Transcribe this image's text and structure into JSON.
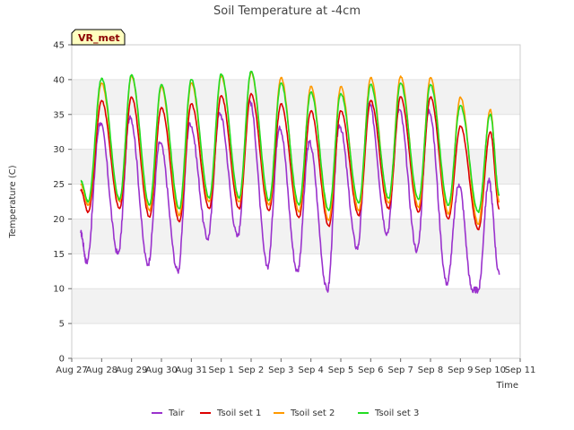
{
  "chart_data": {
    "type": "line",
    "title": "Soil Temperature at -4cm",
    "xlabel": "Time",
    "ylabel": "Temperature (C)",
    "ylim": [
      0,
      45
    ],
    "yticks": [
      0,
      5,
      10,
      15,
      20,
      25,
      30,
      35,
      40,
      45
    ],
    "xlim": [
      0,
      15
    ],
    "xtick_labels": [
      "Aug 27",
      "Aug 28",
      "Aug 29",
      "Aug 30",
      "Aug 31",
      "Sep 1",
      "Sep 2",
      "Sep 3",
      "Sep 4",
      "Sep 5",
      "Sep 6",
      "Sep 7",
      "Sep 8",
      "Sep 9",
      "Sep 10",
      "Sep 11"
    ],
    "x_unit": "days since Aug 27",
    "grid": "horizontal bands",
    "legend_position": "bottom-center",
    "station_badge": "VR_met",
    "series": [
      {
        "name": "Tair",
        "color": "#9a32cd",
        "extrema": [
          [
            0.3,
            18
          ],
          [
            0.5,
            13.8
          ],
          [
            0.95,
            33.8
          ],
          [
            1.55,
            15
          ],
          [
            1.95,
            34.8
          ],
          [
            2.55,
            13.5
          ],
          [
            2.95,
            31
          ],
          [
            3.55,
            12.5
          ],
          [
            3.95,
            33.8
          ],
          [
            4.55,
            17.2
          ],
          [
            4.95,
            35.2
          ],
          [
            5.55,
            17.5
          ],
          [
            5.95,
            37
          ],
          [
            6.55,
            13.2
          ],
          [
            6.95,
            33.3
          ],
          [
            7.55,
            12.5
          ],
          [
            7.95,
            31
          ],
          [
            8.55,
            9.7
          ],
          [
            8.95,
            33.5
          ],
          [
            9.55,
            15.8
          ],
          [
            9.95,
            36.5
          ],
          [
            10.55,
            18
          ],
          [
            10.95,
            35.7
          ],
          [
            11.55,
            15.5
          ],
          [
            11.95,
            35.7
          ],
          [
            12.55,
            10.8
          ],
          [
            12.95,
            25
          ],
          [
            13.4,
            9.8
          ],
          [
            13.6,
            9.8
          ],
          [
            13.95,
            25.5
          ],
          [
            14.3,
            12
          ]
        ]
      },
      {
        "name": "Tsoil set 1",
        "color": "#dd0000",
        "extrema": [
          [
            0.3,
            24.2
          ],
          [
            0.55,
            21
          ],
          [
            1.0,
            37
          ],
          [
            1.6,
            21.5
          ],
          [
            2.0,
            37.5
          ],
          [
            2.6,
            20.3
          ],
          [
            3.0,
            36
          ],
          [
            3.6,
            19.6
          ],
          [
            4.0,
            36.5
          ],
          [
            4.6,
            21.5
          ],
          [
            5.0,
            37.7
          ],
          [
            5.6,
            21.5
          ],
          [
            6.0,
            38
          ],
          [
            6.6,
            21.2
          ],
          [
            7.0,
            36.5
          ],
          [
            7.6,
            20.2
          ],
          [
            8.0,
            35.5
          ],
          [
            8.6,
            19
          ],
          [
            9.0,
            35.5
          ],
          [
            9.6,
            20.5
          ],
          [
            10.0,
            37
          ],
          [
            10.6,
            21.5
          ],
          [
            11.0,
            37.5
          ],
          [
            11.6,
            21
          ],
          [
            12.0,
            37.5
          ],
          [
            12.6,
            20
          ],
          [
            13.0,
            33.3
          ],
          [
            13.6,
            18.5
          ],
          [
            14.0,
            32.5
          ],
          [
            14.3,
            21.5
          ]
        ]
      },
      {
        "name": "Tsoil set 2",
        "color": "#ff9900",
        "extrema": [
          [
            0.3,
            25
          ],
          [
            0.55,
            22
          ],
          [
            1.0,
            39.5
          ],
          [
            1.6,
            22.5
          ],
          [
            2.0,
            40.5
          ],
          [
            2.6,
            21.2
          ],
          [
            3.0,
            39
          ],
          [
            3.6,
            20.5
          ],
          [
            4.0,
            39.5
          ],
          [
            4.6,
            22.5
          ],
          [
            5.0,
            40.5
          ],
          [
            5.6,
            22.5
          ],
          [
            6.0,
            41
          ],
          [
            6.6,
            22
          ],
          [
            7.0,
            40.3
          ],
          [
            7.6,
            21
          ],
          [
            8.0,
            39
          ],
          [
            8.6,
            19.8
          ],
          [
            9.0,
            39
          ],
          [
            9.6,
            21.2
          ],
          [
            10.0,
            40.3
          ],
          [
            10.6,
            22.3
          ],
          [
            11.0,
            40.5
          ],
          [
            11.6,
            21.7
          ],
          [
            12.0,
            40.3
          ],
          [
            12.6,
            20.7
          ],
          [
            13.0,
            37.5
          ],
          [
            13.6,
            19.3
          ],
          [
            14.0,
            35.7
          ],
          [
            14.3,
            22.5
          ]
        ]
      },
      {
        "name": "Tsoil set 3",
        "color": "#22dd22",
        "extrema": [
          [
            0.3,
            25.5
          ],
          [
            0.55,
            22.5
          ],
          [
            1.0,
            40.2
          ],
          [
            1.6,
            22.8
          ],
          [
            2.0,
            40.7
          ],
          [
            2.6,
            22
          ],
          [
            3.0,
            39.3
          ],
          [
            3.6,
            21.5
          ],
          [
            4.0,
            40
          ],
          [
            4.6,
            23
          ],
          [
            5.0,
            40.8
          ],
          [
            5.6,
            23
          ],
          [
            6.0,
            41.2
          ],
          [
            6.6,
            22.7
          ],
          [
            7.0,
            39.5
          ],
          [
            7.6,
            22
          ],
          [
            8.0,
            38.2
          ],
          [
            8.6,
            21.2
          ],
          [
            9.0,
            38
          ],
          [
            9.6,
            22.3
          ],
          [
            10.0,
            39.3
          ],
          [
            10.6,
            23
          ],
          [
            11.0,
            39.5
          ],
          [
            11.6,
            22.8
          ],
          [
            12.0,
            39.3
          ],
          [
            12.6,
            22
          ],
          [
            13.0,
            36.3
          ],
          [
            13.6,
            21
          ],
          [
            14.0,
            35
          ],
          [
            14.3,
            23.5
          ]
        ]
      }
    ]
  }
}
